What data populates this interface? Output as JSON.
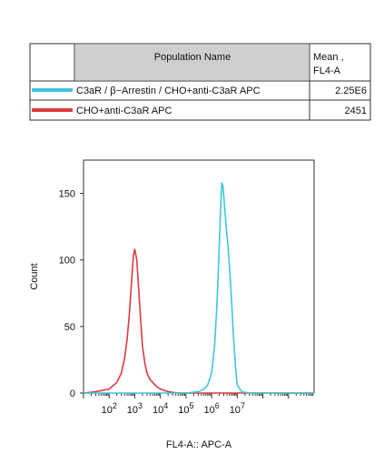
{
  "legend_table": {
    "header_name": "Population Name",
    "header_mean_line1": "Mean ,",
    "header_mean_line2": "FL4-A",
    "rows": [
      {
        "color": "#3ec6dc",
        "name": "C3aR / β−Arrestin / CHO+anti-C3aR APC",
        "mean": "2.25E6"
      },
      {
        "color": "#e0393f",
        "name": "CHO+anti-C3aR APC",
        "mean": "2451"
      }
    ],
    "header_fill": "#cfcfcf"
  },
  "chart_data": {
    "type": "line",
    "title": "",
    "xlabel": "FL4-A:: APC-A",
    "ylabel": "Count",
    "x_scale": "log10",
    "xlim": [
      10,
      10000000000
    ],
    "ylim": [
      0,
      175
    ],
    "y_ticks": [
      0,
      50,
      100,
      150
    ],
    "x_ticks": [
      {
        "base": "10",
        "exp": "2",
        "value": 100
      },
      {
        "base": "10",
        "exp": "3",
        "value": 1000
      },
      {
        "base": "10",
        "exp": "4",
        "value": 10000
      },
      {
        "base": "10",
        "exp": "5",
        "value": 100000
      },
      {
        "base": "10",
        "exp": "6",
        "value": 1000000
      },
      {
        "base": "10",
        "exp": "7",
        "value": 10000000
      }
    ],
    "series": [
      {
        "color": "#e0393f",
        "x": [
          10,
          30,
          100,
          200,
          300,
          400,
          500,
          600,
          700,
          800,
          900,
          1000,
          1200,
          1400,
          1700,
          2000,
          2500,
          3000,
          4000,
          5000,
          7000,
          10000,
          20000,
          50000,
          100000,
          1000000,
          10000000000
        ],
        "y": [
          0,
          1,
          3,
          8,
          15,
          26,
          40,
          57,
          75,
          92,
          104,
          108,
          100,
          80,
          55,
          35,
          22,
          15,
          10,
          8,
          5,
          3,
          1,
          0,
          0,
          0,
          0
        ]
      },
      {
        "color": "#3ec6dc",
        "x": [
          10,
          100000,
          300000,
          500000,
          700000,
          1000000,
          1300000,
          1600000,
          1900000,
          2200000,
          2500000,
          2800000,
          3200000,
          3700000,
          4300000,
          5000000,
          6000000,
          7000000,
          8500000,
          10000000,
          15000000,
          30000000,
          10000000000
        ],
        "y": [
          0,
          0,
          1,
          3,
          6,
          15,
          35,
          65,
          100,
          135,
          158,
          155,
          140,
          125,
          112,
          95,
          70,
          45,
          20,
          6,
          1,
          0,
          0
        ]
      }
    ]
  }
}
